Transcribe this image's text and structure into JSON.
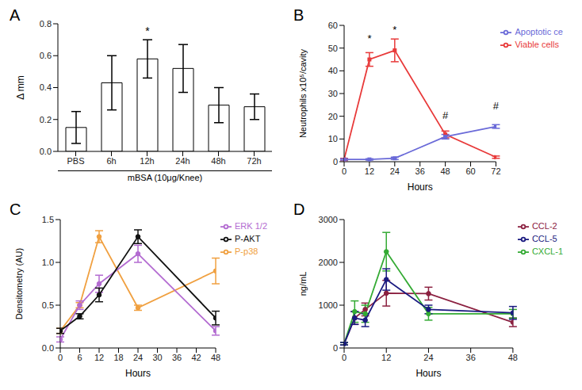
{
  "chart_data": [
    {
      "panel": "A",
      "type": "bar",
      "y_label": "Δ mm",
      "group_label": "mBSA (10μg/Knee)",
      "categories": [
        "PBS",
        "6h",
        "12h",
        "24h",
        "48h",
        "72h"
      ],
      "values": [
        0.15,
        0.43,
        0.58,
        0.52,
        0.29,
        0.28
      ],
      "errors": [
        0.1,
        0.17,
        0.12,
        0.15,
        0.11,
        0.08
      ],
      "annotations": [
        null,
        null,
        "*",
        null,
        null,
        null
      ],
      "color": "#ffffff",
      "ylim": [
        0,
        0.8
      ],
      "yticks": [
        {
          "value": 0,
          "label": "0.0"
        },
        0.2,
        0.4,
        0.6,
        0.8
      ]
    },
    {
      "panel": "B",
      "type": "line",
      "x_label": "Hours",
      "y_label": "Neutrophils x10⁵/cavity",
      "x": [
        0,
        12,
        24,
        48,
        72
      ],
      "series": [
        {
          "name": "Viable cells",
          "color": "#e83a3a",
          "marker": "square",
          "values": [
            1,
            45,
            49,
            12,
            2
          ],
          "errors": [
            0.5,
            3,
            5,
            1.5,
            0.5
          ],
          "annotations": [
            null,
            "*",
            "*",
            null,
            null
          ]
        },
        {
          "name": "Apoptotic ce",
          "color": "#6a6ad8",
          "marker": "square",
          "values": [
            1,
            1,
            1.5,
            11,
            15.5
          ],
          "errors": [
            0.3,
            0.3,
            0.5,
            1,
            0.8
          ],
          "annotations": [
            null,
            null,
            null,
            "#",
            "#"
          ]
        }
      ],
      "xlim": [
        0,
        72
      ],
      "xticks": [
        0,
        12,
        24,
        36,
        48,
        60,
        72
      ],
      "ylim": [
        0,
        60
      ],
      "yticks": [
        0,
        10,
        20,
        30,
        40,
        50,
        60
      ],
      "legend": "right"
    },
    {
      "panel": "C",
      "type": "line",
      "x_label": "Hours",
      "y_label": "Densitometry (AU)",
      "x": [
        0,
        6,
        12,
        24,
        48
      ],
      "series": [
        {
          "name": "P-p38",
          "color": "#f0a040",
          "marker": "circle",
          "values": [
            0.2,
            0.5,
            1.3,
            0.47,
            0.9
          ],
          "errors": [
            0.03,
            0.03,
            0.07,
            0.03,
            0.15
          ]
        },
        {
          "name": "ERK 1/2",
          "color": "#b36bd1",
          "marker": "circle",
          "values": [
            0.1,
            0.5,
            0.75,
            1.1,
            0.2
          ],
          "errors": [
            0.03,
            0.05,
            0.1,
            0.1,
            0.05
          ]
        },
        {
          "name": "P-AKT",
          "color": "#111111",
          "marker": "circle",
          "values": [
            0.2,
            0.37,
            0.62,
            1.3,
            0.35
          ],
          "errors": [
            0.03,
            0.03,
            0.08,
            0.08,
            0.08
          ]
        }
      ],
      "xlim": [
        0,
        48
      ],
      "xticks": [
        0,
        6,
        12,
        18,
        24,
        30,
        36,
        42,
        48
      ],
      "ylim": [
        0,
        1.5
      ],
      "yticks": [
        {
          "value": 0,
          "label": "0.0"
        },
        0.5,
        {
          "value": 1,
          "label": "1.0"
        },
        1.5
      ],
      "legend": "right"
    },
    {
      "panel": "D",
      "type": "line",
      "x_label": "Hours",
      "y_label": "ng/mL",
      "x": [
        0,
        3,
        6,
        12,
        24,
        48
      ],
      "series": [
        {
          "name": "CCL-2",
          "color": "#8b2040",
          "marker": "circle",
          "values": [
            100,
            700,
            900,
            1280,
            1270,
            600
          ],
          "errors": [
            30,
            150,
            150,
            300,
            150,
            100
          ]
        },
        {
          "name": "CXCL-1",
          "color": "#33aa33",
          "marker": "circle",
          "values": [
            100,
            850,
            800,
            2250,
            800,
            800
          ],
          "errors": [
            30,
            250,
            200,
            450,
            150,
            100
          ]
        },
        {
          "name": "CCL-5",
          "color": "#1a1a80",
          "marker": "circle",
          "values": [
            100,
            700,
            650,
            1600,
            900,
            820
          ],
          "errors": [
            30,
            150,
            150,
            250,
            100,
            150
          ]
        }
      ],
      "xlim": [
        0,
        48
      ],
      "xticks": [
        0,
        12,
        24,
        36,
        48
      ],
      "ylim": [
        0,
        3000
      ],
      "yticks": [
        0,
        1000,
        2000,
        3000
      ],
      "legend": "right"
    }
  ]
}
